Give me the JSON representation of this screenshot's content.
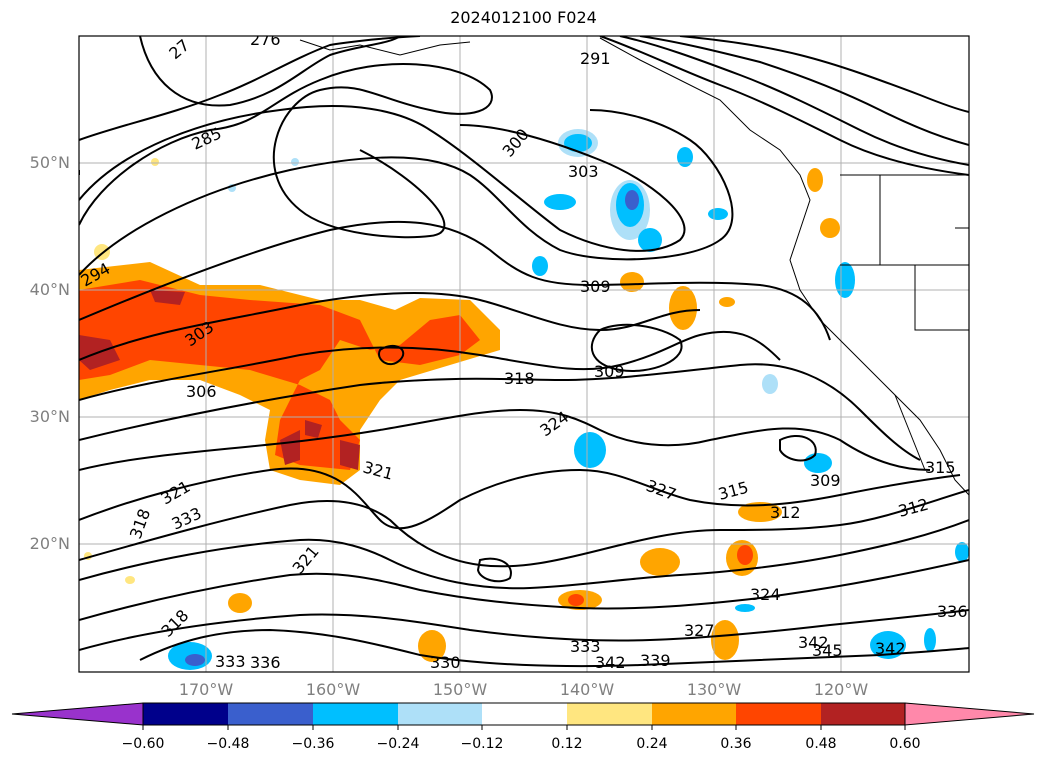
{
  "title": "2024012100 F024",
  "map": {
    "lat_labels": [
      "50°N",
      "40°N",
      "30°N",
      "20°N"
    ],
    "lon_labels": [
      "170°W",
      "160°W",
      "150°W",
      "140°W",
      "130°W",
      "120°W"
    ],
    "contour_labels": [
      "276",
      "27",
      "285",
      "291",
      "300",
      "303",
      "309",
      "309",
      "318",
      "324",
      "327",
      "315",
      "312",
      "309",
      "315",
      "312",
      "306",
      "303",
      "294",
      "321",
      "321",
      "318",
      "333",
      "321",
      "318",
      "330",
      "333",
      "342",
      "339",
      "336",
      "342",
      "345",
      "342",
      "324",
      "327",
      "333",
      "336"
    ],
    "colors": {
      "orange": "#ffa500",
      "red_orange": "#ff4500",
      "dark_red": "#b22222",
      "yellow": "#ffe680",
      "light_blue": "#aee0f8",
      "sky_blue": "#00bfff",
      "royal_blue": "#3a5fcd"
    }
  },
  "colorbar": {
    "ticks": [
      "−0.60",
      "−0.48",
      "−0.36",
      "−0.24",
      "−0.12",
      "0.12",
      "0.24",
      "0.36",
      "0.48",
      "0.60"
    ],
    "colors": [
      "#9932cc",
      "#00008b",
      "#3a5fcd",
      "#00bfff",
      "#aee0f8",
      "#ffffff",
      "#ffe680",
      "#ffa500",
      "#ff4500",
      "#b22222",
      "#ff88aa"
    ]
  }
}
